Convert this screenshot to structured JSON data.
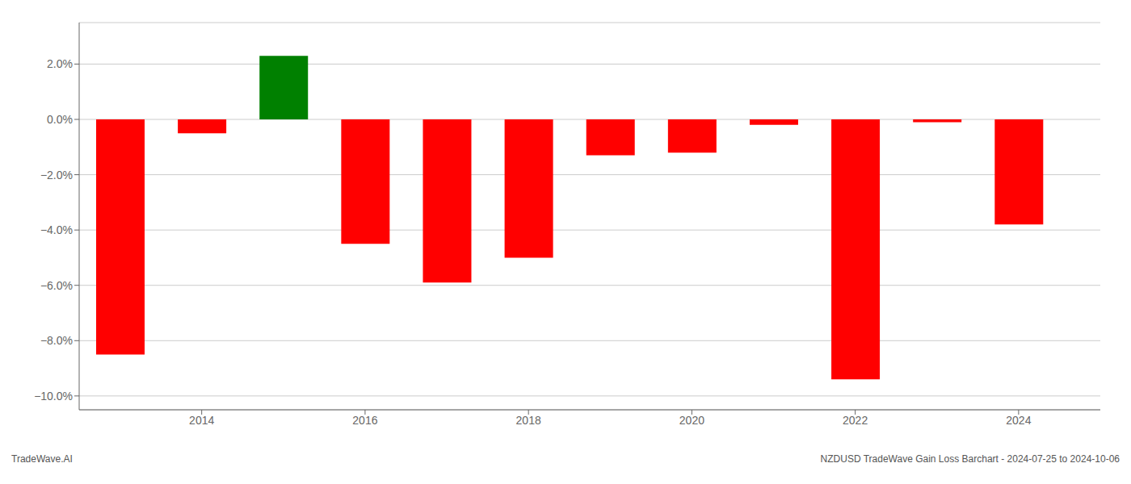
{
  "chart_data": {
    "type": "bar",
    "x": [
      2013,
      2014,
      2015,
      2016,
      2017,
      2018,
      2019,
      2020,
      2021,
      2022,
      2023,
      2024
    ],
    "values": [
      -0.085,
      -0.005,
      0.023,
      -0.045,
      -0.059,
      -0.05,
      -0.013,
      -0.012,
      -0.002,
      -0.094,
      -0.001,
      -0.038
    ],
    "colors": [
      "#ff0000",
      "#ff0000",
      "#008000",
      "#ff0000",
      "#ff0000",
      "#ff0000",
      "#ff0000",
      "#ff0000",
      "#ff0000",
      "#ff0000",
      "#ff0000",
      "#ff0000"
    ],
    "xlim": [
      2012.5,
      2025.0
    ],
    "xticks": [
      2014,
      2016,
      2018,
      2020,
      2022,
      2024
    ],
    "ylim": [
      -0.105,
      0.035
    ],
    "yticks": [
      {
        "value": -0.1,
        "label": "−10.0%"
      },
      {
        "value": -0.08,
        "label": "−8.0%"
      },
      {
        "value": -0.06,
        "label": "−6.0%"
      },
      {
        "value": -0.04,
        "label": "−4.0%"
      },
      {
        "value": -0.02,
        "label": "−2.0%"
      },
      {
        "value": 0.0,
        "label": "0.0%"
      },
      {
        "value": 0.02,
        "label": "2.0%"
      }
    ],
    "grid": true,
    "annotations": [
      "TradeWave.AI",
      "NZDUSD TradeWave Gain Loss Barchart - 2024-07-25 to 2024-10-06"
    ]
  }
}
